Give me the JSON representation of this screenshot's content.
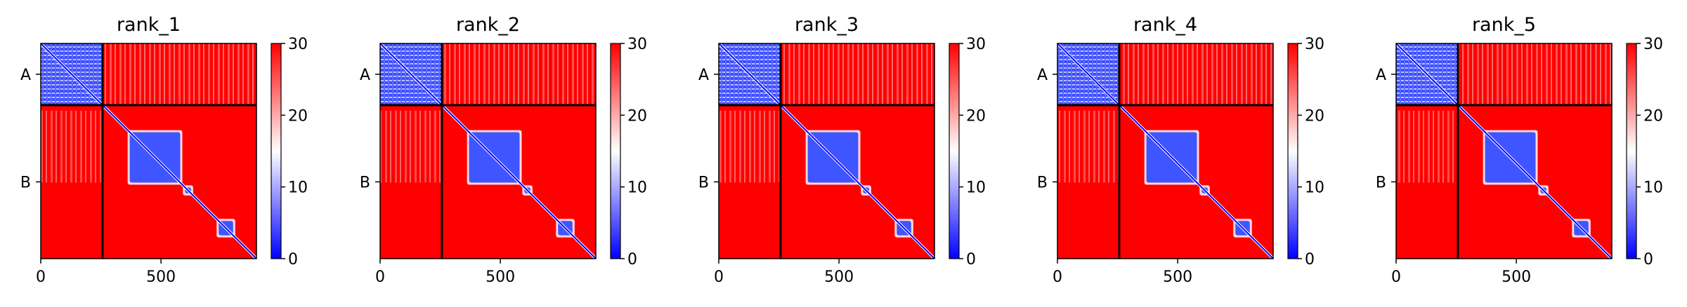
{
  "chart_data": [
    {
      "type": "heatmap",
      "title": "rank_1",
      "xlim": [
        0,
        897
      ],
      "ylim": [
        897,
        0
      ],
      "x_ticks": [
        0,
        500
      ],
      "x_tick_labels": [
        "0",
        "500"
      ],
      "y_tick_labels": [
        "A",
        "B"
      ],
      "chains": [
        {
          "name": "A",
          "start": 0,
          "end": 257
        },
        {
          "name": "B",
          "start": 257,
          "end": 897
        }
      ],
      "chain_boundary": 257,
      "colorbar": {
        "min": 0,
        "max": 30,
        "ticks": [
          0,
          10,
          20,
          30
        ],
        "tick_labels": [
          "0",
          "10",
          "20",
          "30"
        ],
        "colormap": "bwr"
      },
      "low_error_blocks": [
        [
          0,
          257
        ],
        [
          370,
          580
        ],
        [
          600,
          625
        ],
        [
          740,
          800
        ]
      ],
      "inter_chain_error": 28
    },
    {
      "type": "heatmap",
      "title": "rank_2",
      "xlim": [
        0,
        897
      ],
      "ylim": [
        897,
        0
      ],
      "x_ticks": [
        0,
        500
      ],
      "x_tick_labels": [
        "0",
        "500"
      ],
      "y_tick_labels": [
        "A",
        "B"
      ],
      "chains": [
        {
          "name": "A",
          "start": 0,
          "end": 257
        },
        {
          "name": "B",
          "start": 257,
          "end": 897
        }
      ],
      "chain_boundary": 257,
      "colorbar": {
        "min": 0,
        "max": 30,
        "ticks": [
          0,
          10,
          20,
          30
        ],
        "tick_labels": [
          "0",
          "10",
          "20",
          "30"
        ],
        "colormap": "bwr"
      },
      "low_error_blocks": [
        [
          0,
          257
        ],
        [
          370,
          580
        ],
        [
          600,
          625
        ],
        [
          740,
          800
        ]
      ],
      "inter_chain_error": 28
    },
    {
      "type": "heatmap",
      "title": "rank_3",
      "xlim": [
        0,
        897
      ],
      "ylim": [
        897,
        0
      ],
      "x_ticks": [
        0,
        500
      ],
      "x_tick_labels": [
        "0",
        "500"
      ],
      "y_tick_labels": [
        "A",
        "B"
      ],
      "chains": [
        {
          "name": "A",
          "start": 0,
          "end": 257
        },
        {
          "name": "B",
          "start": 257,
          "end": 897
        }
      ],
      "chain_boundary": 257,
      "colorbar": {
        "min": 0,
        "max": 30,
        "ticks": [
          0,
          10,
          20,
          30
        ],
        "tick_labels": [
          "0",
          "10",
          "20",
          "30"
        ],
        "colormap": "bwr"
      },
      "low_error_blocks": [
        [
          0,
          257
        ],
        [
          370,
          580
        ],
        [
          600,
          625
        ],
        [
          740,
          800
        ]
      ],
      "inter_chain_error": 28
    },
    {
      "type": "heatmap",
      "title": "rank_4",
      "xlim": [
        0,
        897
      ],
      "ylim": [
        897,
        0
      ],
      "x_ticks": [
        0,
        500
      ],
      "x_tick_labels": [
        "0",
        "500"
      ],
      "y_tick_labels": [
        "A",
        "B"
      ],
      "chains": [
        {
          "name": "A",
          "start": 0,
          "end": 257
        },
        {
          "name": "B",
          "start": 257,
          "end": 897
        }
      ],
      "chain_boundary": 257,
      "colorbar": {
        "min": 0,
        "max": 30,
        "ticks": [
          0,
          10,
          20,
          30
        ],
        "tick_labels": [
          "0",
          "10",
          "20",
          "30"
        ],
        "colormap": "bwr"
      },
      "low_error_blocks": [
        [
          0,
          257
        ],
        [
          370,
          580
        ],
        [
          600,
          625
        ],
        [
          740,
          800
        ]
      ],
      "inter_chain_error": 28
    },
    {
      "type": "heatmap",
      "title": "rank_5",
      "xlim": [
        0,
        897
      ],
      "ylim": [
        897,
        0
      ],
      "x_ticks": [
        0,
        500
      ],
      "x_tick_labels": [
        "0",
        "500"
      ],
      "y_tick_labels": [
        "A",
        "B"
      ],
      "chains": [
        {
          "name": "A",
          "start": 0,
          "end": 257
        },
        {
          "name": "B",
          "start": 257,
          "end": 897
        }
      ],
      "chain_boundary": 257,
      "colorbar": {
        "min": 0,
        "max": 30,
        "ticks": [
          0,
          10,
          20,
          30
        ],
        "tick_labels": [
          "0",
          "10",
          "20",
          "30"
        ],
        "colormap": "bwr"
      },
      "low_error_blocks": [
        [
          0,
          257
        ],
        [
          370,
          580
        ],
        [
          600,
          625
        ],
        [
          740,
          800
        ]
      ],
      "inter_chain_error": 28
    }
  ]
}
